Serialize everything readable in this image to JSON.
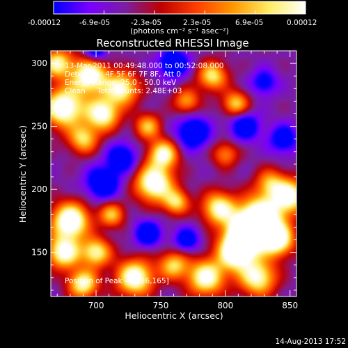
{
  "colorbar": {
    "tick_labels": [
      "-0.00012",
      "-6.9e-05",
      "-2.3e-05",
      "2.3e-05",
      "6.9e-05",
      "0.00012"
    ],
    "unit_label": "(photons cm⁻² s⁻¹ asec⁻²)",
    "colors": [
      "#0000ff",
      "#7a00ff",
      "#7a1fa0",
      "#c00000",
      "#ff4000",
      "#ff9900",
      "#ffee66",
      "#ffffff"
    ]
  },
  "chart_data": {
    "type": "heatmap",
    "title": "Reconstructed RHESSI Image",
    "xlabel": "Heliocentric X (arcsec)",
    "ylabel": "Heliocentric Y (arcsec)",
    "xlim": [
      665,
      855
    ],
    "ylim": [
      115,
      310
    ],
    "x_ticks": [
      700,
      750,
      800,
      850
    ],
    "y_ticks": [
      150,
      200,
      250,
      300
    ],
    "x_tick_labels": [
      "700",
      "750",
      "800",
      "850"
    ],
    "y_tick_labels": [
      "150",
      "200",
      "250",
      "300"
    ],
    "value_range": [
      -0.00012,
      0.00012
    ],
    "peak": [
      816,
      165
    ],
    "annotations": {
      "time": "13-Mar-2011 00:49:48.000 to 00:52:08.000",
      "detectors": "Detectors: 4F 5F 6F 7F 8F, Att 0",
      "energy": "Energy Range: 25.0 - 50.0 keV",
      "clean": "Clean     Total counts: 2.48E+03",
      "peak": "Position of Peak = [816,165]"
    },
    "blobs": [
      {
        "x": 816,
        "y": 165,
        "sigma": 10,
        "amp": 1.05
      },
      {
        "x": 828,
        "y": 178,
        "sigma": 12,
        "amp": 0.9
      },
      {
        "x": 808,
        "y": 150,
        "sigma": 10,
        "amp": 0.85
      },
      {
        "x": 840,
        "y": 160,
        "sigma": 9,
        "amp": 0.8
      },
      {
        "x": 795,
        "y": 185,
        "sigma": 9,
        "amp": 0.7
      },
      {
        "x": 785,
        "y": 130,
        "sigma": 10,
        "amp": 0.75
      },
      {
        "x": 825,
        "y": 130,
        "sigma": 10,
        "amp": 0.7
      },
      {
        "x": 850,
        "y": 195,
        "sigma": 9,
        "amp": 0.75
      },
      {
        "x": 680,
        "y": 175,
        "sigma": 10,
        "amp": 0.9
      },
      {
        "x": 675,
        "y": 150,
        "sigma": 9,
        "amp": 0.75
      },
      {
        "x": 700,
        "y": 150,
        "sigma": 8,
        "amp": 0.65
      },
      {
        "x": 690,
        "y": 125,
        "sigma": 8,
        "amp": 0.7
      },
      {
        "x": 730,
        "y": 130,
        "sigma": 10,
        "amp": 0.8
      },
      {
        "x": 712,
        "y": 180,
        "sigma": 7,
        "amp": 0.5
      },
      {
        "x": 760,
        "y": 140,
        "sigma": 8,
        "amp": 0.55
      },
      {
        "x": 675,
        "y": 265,
        "sigma": 11,
        "amp": 0.85
      },
      {
        "x": 695,
        "y": 290,
        "sigma": 10,
        "amp": 0.8
      },
      {
        "x": 705,
        "y": 260,
        "sigma": 9,
        "amp": 0.75
      },
      {
        "x": 720,
        "y": 280,
        "sigma": 9,
        "amp": 0.7
      },
      {
        "x": 690,
        "y": 240,
        "sigma": 8,
        "amp": 0.55
      },
      {
        "x": 670,
        "y": 300,
        "sigma": 8,
        "amp": 0.65
      },
      {
        "x": 745,
        "y": 205,
        "sigma": 10,
        "amp": 0.85
      },
      {
        "x": 752,
        "y": 228,
        "sigma": 8,
        "amp": 0.7
      },
      {
        "x": 762,
        "y": 190,
        "sigma": 7,
        "amp": 0.55
      },
      {
        "x": 740,
        "y": 250,
        "sigma": 7,
        "amp": 0.5
      },
      {
        "x": 790,
        "y": 290,
        "sigma": 8,
        "amp": 0.6
      },
      {
        "x": 808,
        "y": 268,
        "sigma": 7,
        "amp": 0.55
      },
      {
        "x": 770,
        "y": 270,
        "sigma": 7,
        "amp": 0.45
      },
      {
        "x": 835,
        "y": 205,
        "sigma": 8,
        "amp": 0.45
      },
      {
        "x": 800,
        "y": 228,
        "sigma": 7,
        "amp": 0.4
      }
    ],
    "dips": [
      {
        "x": 705,
        "y": 205,
        "sigma": 9,
        "amp": 0.5
      },
      {
        "x": 720,
        "y": 225,
        "sigma": 8,
        "amp": 0.45
      },
      {
        "x": 775,
        "y": 245,
        "sigma": 9,
        "amp": 0.5
      },
      {
        "x": 740,
        "y": 165,
        "sigma": 7,
        "amp": 0.5
      },
      {
        "x": 815,
        "y": 250,
        "sigma": 8,
        "amp": 0.45
      },
      {
        "x": 760,
        "y": 300,
        "sigma": 8,
        "amp": 0.5
      },
      {
        "x": 700,
        "y": 310,
        "sigma": 6,
        "amp": 0.45
      },
      {
        "x": 845,
        "y": 240,
        "sigma": 8,
        "amp": 0.4
      },
      {
        "x": 770,
        "y": 160,
        "sigma": 7,
        "amp": 0.4
      },
      {
        "x": 830,
        "y": 285,
        "sigma": 7,
        "amp": 0.35
      }
    ]
  },
  "footer": {
    "timestamp": "14-Aug-2013 17:52"
  }
}
